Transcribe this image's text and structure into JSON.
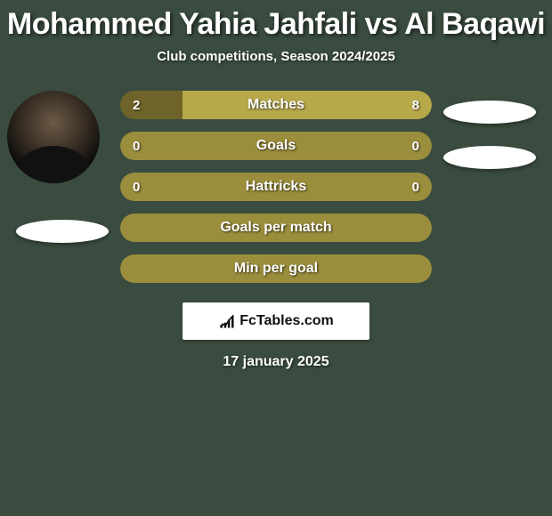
{
  "title": "Mohammed Yahia Jahfali vs Al Baqawi",
  "subtitle": "Club competitions, Season 2024/2025",
  "date": "17 january 2025",
  "logo_text": "FcTables.com",
  "colors": {
    "background": "#3a4c3f",
    "neutral_bar": "#9a8d3c",
    "left_fill": "#6e6429",
    "right_fill": "#b7a94a",
    "full_left_only": "#9a8d3c",
    "text": "#ffffff"
  },
  "stats": [
    {
      "label": "Matches",
      "left_value": "2",
      "right_value": "8",
      "left_pct": 20,
      "right_pct": 80,
      "left_color": "#6e6429",
      "right_color": "#b7a94a"
    },
    {
      "label": "Goals",
      "left_value": "0",
      "right_value": "0",
      "left_pct": 50,
      "right_pct": 50,
      "left_color": "#9a8d3c",
      "right_color": "#9a8d3c"
    },
    {
      "label": "Hattricks",
      "left_value": "0",
      "right_value": "0",
      "left_pct": 50,
      "right_pct": 50,
      "left_color": "#9a8d3c",
      "right_color": "#9a8d3c"
    },
    {
      "label": "Goals per match",
      "left_value": "",
      "right_value": "",
      "left_pct": 100,
      "right_pct": 0,
      "left_color": "#9a8d3c",
      "right_color": "#9a8d3c"
    },
    {
      "label": "Min per goal",
      "left_value": "",
      "right_value": "",
      "left_pct": 100,
      "right_pct": 0,
      "left_color": "#9a8d3c",
      "right_color": "#9a8d3c"
    }
  ]
}
